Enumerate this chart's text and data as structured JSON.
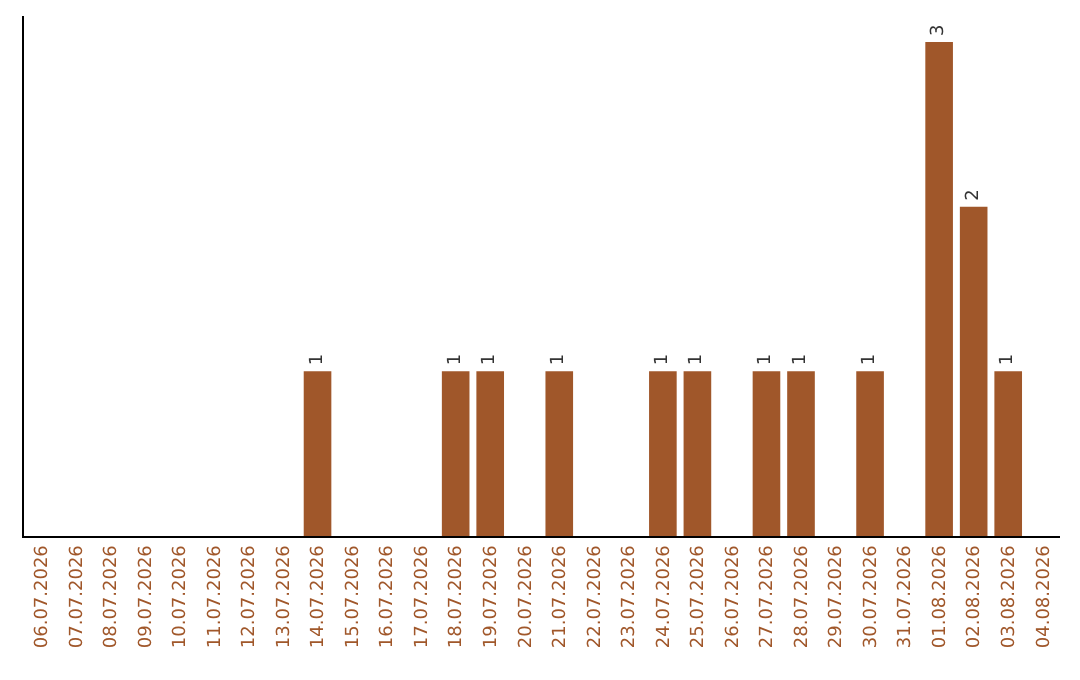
{
  "chart_data": {
    "type": "bar",
    "categories": [
      "06.07.2026",
      "07.07.2026",
      "08.07.2026",
      "09.07.2026",
      "10.07.2026",
      "11.07.2026",
      "12.07.2026",
      "13.07.2026",
      "14.07.2026",
      "15.07.2026",
      "16.07.2026",
      "17.07.2026",
      "18.07.2026",
      "19.07.2026",
      "20.07.2026",
      "21.07.2026",
      "22.07.2026",
      "23.07.2026",
      "24.07.2026",
      "25.07.2026",
      "26.07.2026",
      "27.07.2026",
      "28.07.2026",
      "29.07.2026",
      "30.07.2026",
      "31.07.2026",
      "01.08.2026",
      "02.08.2026",
      "03.08.2026",
      "04.08.2026"
    ],
    "values": [
      0,
      0,
      0,
      0,
      0,
      0,
      0,
      0,
      1,
      0,
      0,
      0,
      1,
      1,
      0,
      1,
      0,
      0,
      1,
      1,
      0,
      1,
      1,
      0,
      1,
      0,
      3,
      2,
      1,
      0
    ],
    "value_labels": [
      null,
      null,
      null,
      null,
      null,
      null,
      null,
      null,
      "1",
      null,
      null,
      null,
      "1",
      "1",
      null,
      "1",
      null,
      null,
      "1",
      "1",
      null,
      "1",
      "1",
      null,
      "1",
      null,
      "3",
      "2",
      "1",
      null
    ],
    "color": "#a0572a",
    "tick_labels": "x"
  }
}
